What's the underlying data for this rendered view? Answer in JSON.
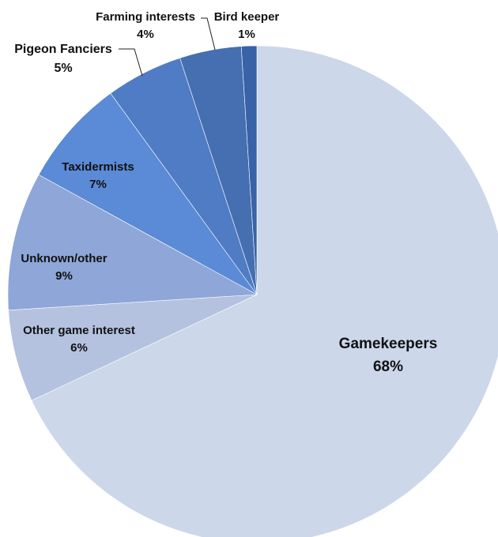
{
  "chart_data": {
    "type": "pie",
    "title": "",
    "slices": [
      {
        "label": "Gamekeepers",
        "pct_label": "68%",
        "value": 68,
        "color": "#cdd7ea"
      },
      {
        "label": "Other game interest",
        "pct_label": "6%",
        "value": 6,
        "color": "#b4c2e0"
      },
      {
        "label": "Unknown/other",
        "pct_label": "9%",
        "value": 9,
        "color": "#8ea6d8"
      },
      {
        "label": "Taxidermists",
        "pct_label": "7%",
        "value": 7,
        "color": "#5b8ad6"
      },
      {
        "label": "Pigeon Fanciers",
        "pct_label": "5%",
        "value": 5,
        "color": "#4f7cc4"
      },
      {
        "label": "Farming interests",
        "pct_label": "4%",
        "value": 4,
        "color": "#456fb0"
      },
      {
        "label": "Bird keeper",
        "pct_label": "1%",
        "value": 1,
        "color": "#3a62a6"
      }
    ]
  }
}
